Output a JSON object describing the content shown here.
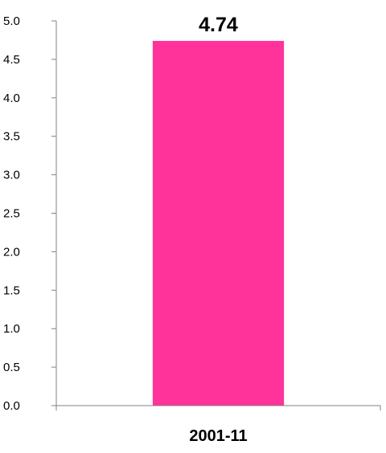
{
  "chart_data": {
    "type": "bar",
    "categories": [
      "2001-11"
    ],
    "values": [
      4.74
    ],
    "data_labels": [
      "4.74"
    ],
    "ylim": [
      0,
      5.0
    ],
    "yticks": [
      "0.0",
      "0.5",
      "1.0",
      "1.5",
      "2.0",
      "2.5",
      "3.0",
      "3.5",
      "4.0",
      "4.5",
      "5.0"
    ],
    "bar_color": "#ff3399",
    "axis_color": "#808080",
    "grid": false,
    "legend": "none"
  }
}
